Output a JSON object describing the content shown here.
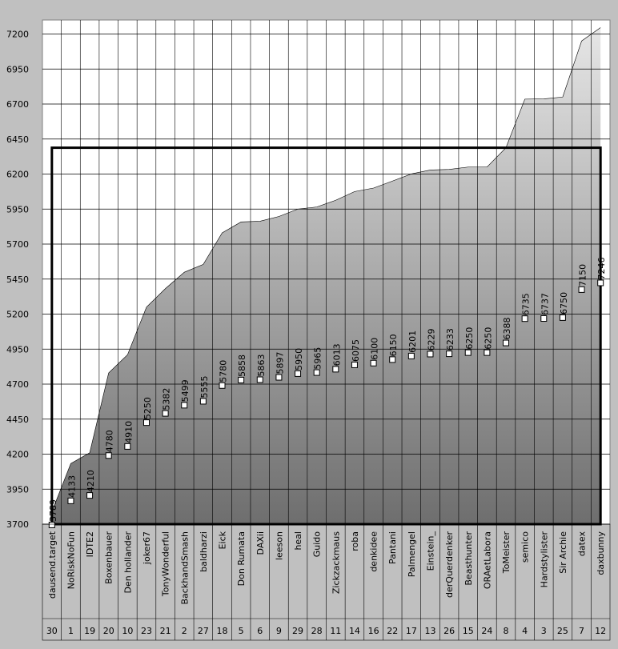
{
  "chart_data": {
    "type": "area",
    "categories": [
      "dausend.target",
      "NoRiskNoFun",
      "IDTE2",
      "Boxenbauer",
      "Den hollander",
      "joker67",
      "TonyWonderful",
      "BackhandSmash",
      "baldharzi",
      "Eick",
      "Don Rumata",
      "DAXii",
      "leeson",
      "heal",
      "Guido",
      "Zickzackmaus",
      "roba",
      "denkidee",
      "Pantani",
      "Palmengel",
      "Einstein_",
      "derQuerdenker",
      "Beasthunter",
      "ORAetLabora",
      "ToMeister",
      "semico",
      "Hardstylister",
      "Sir Archie",
      "datex",
      "daxbunny"
    ],
    "ranks": [
      30,
      1,
      19,
      20,
      10,
      23,
      21,
      2,
      27,
      18,
      5,
      6,
      9,
      29,
      28,
      11,
      14,
      16,
      22,
      17,
      13,
      26,
      15,
      24,
      8,
      4,
      3,
      25,
      7,
      12
    ],
    "values": [
      3789,
      4133,
      4210,
      4780,
      4910,
      5250,
      5382,
      5499,
      5555,
      5780,
      5858,
      5863,
      5897,
      5950,
      5965,
      6013,
      6075,
      6100,
      6150,
      6201,
      6229,
      6233,
      6250,
      6250,
      6388,
      6735,
      6737,
      6750,
      7150,
      7246
    ],
    "ylim": [
      3700,
      7300
    ],
    "yticks": [
      3700,
      3950,
      4200,
      4450,
      4700,
      4950,
      5200,
      5450,
      5700,
      5950,
      6200,
      6450,
      6700,
      6950,
      7200
    ],
    "y2lim": [
      3800,
      11000
    ],
    "reference_line": 6388,
    "grid": true
  }
}
